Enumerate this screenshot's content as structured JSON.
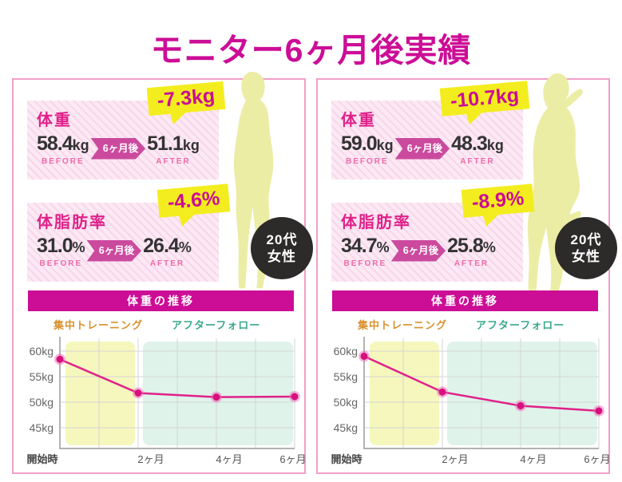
{
  "title": "モニター6ヶ月後実績",
  "colors": {
    "title": "#cc0d96",
    "panel_border": "#f0a0c8",
    "metric_label": "#e0218a",
    "metric_value": "#333333",
    "caption": "#ee6ba8",
    "arrow_badge_bg": "#cb4a9e",
    "arrow_badge_text": "#ffffff",
    "bubble_bg": "#f3ed1f",
    "bubble_text": "#cc0d96",
    "demographic_bg": "#2d2a2a",
    "demographic_text": "#ffffff",
    "silhouette": "#eceda5",
    "chart_header_bg": "#cc0d96",
    "chart_header_text": "#ffffff",
    "training_label": "#d8922f",
    "follow_label": "#3aa98a",
    "training_zone": "#f5f7bd",
    "follow_zone": "#dff3ea",
    "line": "#e0218a",
    "dot": "#d6117e",
    "dot_halo": "#f06ab5",
    "grid": "#d5d5d5",
    "axis": "#b3b3b3"
  },
  "panels": [
    {
      "weight": {
        "label": "体重",
        "bubble": "-7.3kg",
        "before": "58.4",
        "before_unit": "kg",
        "before_caption": "BEFORE",
        "arrow": "6ヶ月後",
        "after": "51.1",
        "after_unit": "kg",
        "after_caption": "AFTER"
      },
      "body_fat": {
        "label": "体脂肪率",
        "bubble": "-4.6%",
        "before": "31.0",
        "before_unit": "%",
        "before_caption": "BEFORE",
        "arrow": "6ヶ月後",
        "after": "26.4",
        "after_unit": "%",
        "after_caption": "AFTER"
      },
      "demographic": {
        "line1": "20代",
        "line2": "女性"
      },
      "chart_header": "体重の推移",
      "zone_labels": {
        "training": "集中トレーニング",
        "follow": "アフターフォロー"
      }
    },
    {
      "weight": {
        "label": "体重",
        "bubble": "-10.7kg",
        "before": "59.0",
        "before_unit": "kg",
        "before_caption": "BEFORE",
        "arrow": "6ヶ月後",
        "after": "48.3",
        "after_unit": "kg",
        "after_caption": "AFTER"
      },
      "body_fat": {
        "label": "体脂肪率",
        "bubble": "-8.9%",
        "before": "34.7",
        "before_unit": "%",
        "before_caption": "BEFORE",
        "arrow": "6ヶ月後",
        "after": "25.8",
        "after_unit": "%",
        "after_caption": "AFTER"
      },
      "demographic": {
        "line1": "20代",
        "line2": "女性"
      },
      "chart_header": "体重の推移",
      "zone_labels": {
        "training": "集中トレーニング",
        "follow": "アフターフォロー"
      }
    }
  ],
  "chart_data": [
    {
      "type": "line",
      "title": "体重の推移",
      "x_labels": [
        "開始時",
        "2ヶ月",
        "4ヶ月",
        "6ヶ月"
      ],
      "x_months": [
        0,
        2,
        4,
        6
      ],
      "values_kg": [
        58.4,
        51.8,
        51.0,
        51.1
      ],
      "y_ticks": [
        {
          "label": "60kg",
          "value": 60
        },
        {
          "label": "55kg",
          "value": 55
        },
        {
          "label": "50kg",
          "value": 50
        },
        {
          "label": "45kg",
          "value": 45
        }
      ],
      "ylim": [
        43,
        62
      ],
      "grid": true,
      "legend": "none",
      "zones": [
        {
          "label": "集中トレーニング",
          "from_month": 0,
          "to_month": 2
        },
        {
          "label": "アフターフォロー",
          "from_month": 2,
          "to_month": 6
        }
      ]
    },
    {
      "type": "line",
      "title": "体重の推移",
      "x_labels": [
        "開始時",
        "2ヶ月",
        "4ヶ月",
        "6ヶ月"
      ],
      "x_months": [
        0,
        2,
        4,
        6
      ],
      "values_kg": [
        59.0,
        52.0,
        49.3,
        48.3
      ],
      "y_ticks": [
        {
          "label": "60kg",
          "value": 60
        },
        {
          "label": "55kg",
          "value": 55
        },
        {
          "label": "50kg",
          "value": 50
        },
        {
          "label": "45kg",
          "value": 45
        }
      ],
      "ylim": [
        43,
        62
      ],
      "grid": true,
      "legend": "none",
      "zones": [
        {
          "label": "集中トレーニング",
          "from_month": 0,
          "to_month": 2
        },
        {
          "label": "アフターフォロー",
          "from_month": 2,
          "to_month": 6
        }
      ]
    }
  ]
}
